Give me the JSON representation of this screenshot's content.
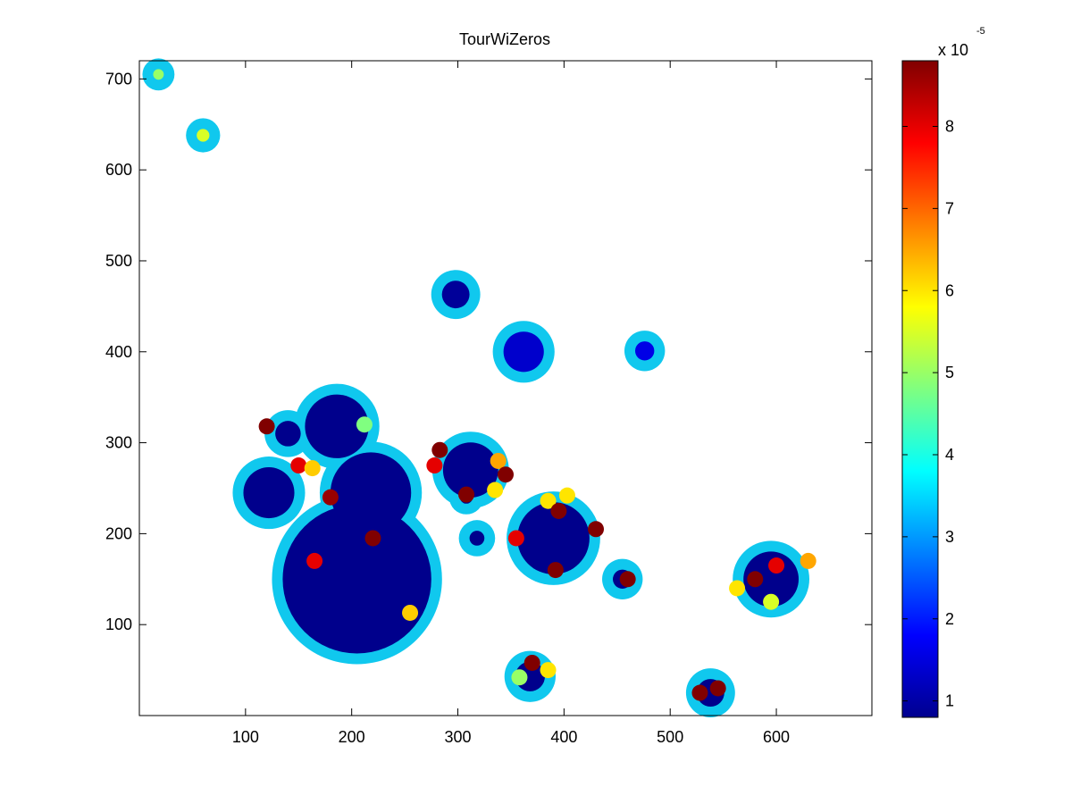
{
  "chart_data": {
    "type": "heatmap",
    "title": "TourWiZeros",
    "xlabel": "",
    "ylabel": "",
    "xlim": [
      0,
      690
    ],
    "ylim": [
      0,
      720
    ],
    "x_ticks": [
      100,
      200,
      300,
      400,
      500,
      600
    ],
    "y_ticks": [
      100,
      200,
      300,
      400,
      500,
      600,
      700
    ],
    "grid": false,
    "colormap": "jet",
    "colorbar": {
      "location": "right",
      "range": [
        0.8,
        8.8
      ],
      "ticks": [
        1,
        2,
        3,
        4,
        5,
        6,
        7,
        8
      ],
      "multiplier_label": "x 10",
      "multiplier_exponent": "-5"
    },
    "regions": [
      {
        "x": 18,
        "y": 705,
        "r": 5,
        "value": 5.0
      },
      {
        "x": 60,
        "y": 638,
        "r": 6,
        "value": 5.5
      },
      {
        "x": 298,
        "y": 463,
        "r": 13,
        "value": 1.0
      },
      {
        "x": 362,
        "y": 400,
        "r": 19,
        "value": 1.4
      },
      {
        "x": 476,
        "y": 401,
        "r": 9,
        "value": 1.6
      },
      {
        "x": 205,
        "y": 150,
        "r": 70,
        "value": 0.9
      },
      {
        "x": 218,
        "y": 245,
        "r": 38,
        "value": 0.9
      },
      {
        "x": 186,
        "y": 318,
        "r": 30,
        "value": 0.9
      },
      {
        "x": 140,
        "y": 310,
        "r": 12,
        "value": 0.9
      },
      {
        "x": 122,
        "y": 245,
        "r": 24,
        "value": 0.9
      },
      {
        "x": 312,
        "y": 270,
        "r": 26,
        "value": 0.9
      },
      {
        "x": 308,
        "y": 240,
        "r": 6,
        "value": 0.9
      },
      {
        "x": 390,
        "y": 195,
        "r": 34,
        "value": 0.9
      },
      {
        "x": 318,
        "y": 195,
        "r": 7,
        "value": 0.9
      },
      {
        "x": 455,
        "y": 150,
        "r": 9,
        "value": 0.9
      },
      {
        "x": 595,
        "y": 150,
        "r": 26,
        "value": 0.9
      },
      {
        "x": 368,
        "y": 43,
        "r": 14,
        "value": 0.9
      },
      {
        "x": 538,
        "y": 25,
        "r": 13,
        "value": 0.9
      }
    ],
    "hotspots": [
      {
        "x": 120,
        "y": 318,
        "value": 8.8
      },
      {
        "x": 150,
        "y": 275,
        "value": 8.0
      },
      {
        "x": 163,
        "y": 272,
        "value": 6.2
      },
      {
        "x": 180,
        "y": 240,
        "value": 8.6
      },
      {
        "x": 220,
        "y": 195,
        "value": 8.8
      },
      {
        "x": 165,
        "y": 170,
        "value": 8.0
      },
      {
        "x": 255,
        "y": 113,
        "value": 6.2
      },
      {
        "x": 212,
        "y": 320,
        "value": 4.8
      },
      {
        "x": 283,
        "y": 292,
        "value": 8.8
      },
      {
        "x": 278,
        "y": 275,
        "value": 8.0
      },
      {
        "x": 338,
        "y": 280,
        "value": 6.5
      },
      {
        "x": 345,
        "y": 265,
        "value": 8.8
      },
      {
        "x": 335,
        "y": 248,
        "value": 6.0
      },
      {
        "x": 308,
        "y": 243,
        "value": 8.8
      },
      {
        "x": 385,
        "y": 236,
        "value": 6.0
      },
      {
        "x": 403,
        "y": 242,
        "value": 6.0
      },
      {
        "x": 395,
        "y": 225,
        "value": 8.8
      },
      {
        "x": 430,
        "y": 205,
        "value": 8.8
      },
      {
        "x": 355,
        "y": 195,
        "value": 8.0
      },
      {
        "x": 392,
        "y": 160,
        "value": 8.8
      },
      {
        "x": 460,
        "y": 150,
        "value": 8.8
      },
      {
        "x": 563,
        "y": 140,
        "value": 6.0
      },
      {
        "x": 580,
        "y": 150,
        "value": 8.8
      },
      {
        "x": 600,
        "y": 165,
        "value": 8.0
      },
      {
        "x": 630,
        "y": 170,
        "value": 6.5
      },
      {
        "x": 595,
        "y": 125,
        "value": 5.5
      },
      {
        "x": 370,
        "y": 58,
        "value": 8.8
      },
      {
        "x": 385,
        "y": 50,
        "value": 6.0
      },
      {
        "x": 358,
        "y": 42,
        "value": 5.0
      },
      {
        "x": 528,
        "y": 25,
        "value": 8.8
      },
      {
        "x": 545,
        "y": 30,
        "value": 8.8
      }
    ]
  }
}
